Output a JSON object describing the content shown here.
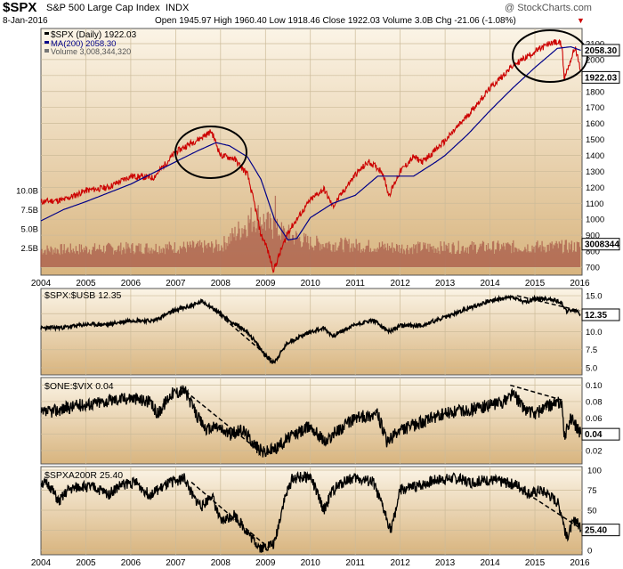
{
  "header": {
    "symbol": "$SPX",
    "name": "S&P 500 Large Cap Index",
    "exchange": "INDX",
    "credit": "@ StockCharts.com",
    "date": "8-Jan-2016",
    "quote": "Open 1945.97  High 1960.40  Low 1918.46  Close 1922.03  Volume 3.0B  Chg -21.06 (-1.08%)",
    "down_marker": "▼"
  },
  "colors": {
    "bg": "#d8b47e",
    "price": "#cc0000",
    "ma": "#000088",
    "volume": "#a85a48",
    "line": "#000000",
    "grid": "#ccbb99"
  },
  "chart_data": [
    {
      "type": "line",
      "panel": "price",
      "legend": [
        "$SPX (Daily) 1922.03",
        "MA(200) 2058.30",
        "Volume 3,008,344,320"
      ],
      "y_ticks": [
        "700",
        "800",
        "900",
        "1000",
        "1100",
        "1200",
        "1300",
        "1400",
        "1500",
        "1600",
        "1700",
        "1800",
        "1900",
        "2000",
        "2100"
      ],
      "ylim": [
        700,
        2150
      ],
      "right_labels": [
        "2058.30",
        "1922.03",
        "3008344"
      ],
      "volume_ticks": [
        "2.5B",
        "5.0B",
        "7.5B",
        "10.0B"
      ],
      "x_ticks": [
        "2004",
        "2005",
        "2006",
        "2007",
        "2008",
        "2009",
        "2010",
        "2011",
        "2012",
        "2013",
        "2014",
        "2015",
        "2016"
      ],
      "series": [
        {
          "name": "$SPX (Daily)",
          "x": [
            2004.0,
            2004.5,
            2005.0,
            2005.5,
            2006.0,
            2006.5,
            2007.0,
            2007.3,
            2007.5,
            2007.8,
            2008.0,
            2008.3,
            2008.6,
            2008.75,
            2008.9,
            2009.0,
            2009.18,
            2009.5,
            2010.0,
            2010.3,
            2010.5,
            2011.0,
            2011.3,
            2011.6,
            2011.75,
            2012.0,
            2012.3,
            2012.5,
            2013.0,
            2013.5,
            2014.0,
            2014.5,
            2015.0,
            2015.4,
            2015.6,
            2015.65,
            2015.8,
            2015.9,
            2016.02
          ],
          "y": [
            1110,
            1120,
            1180,
            1200,
            1270,
            1260,
            1420,
            1470,
            1500,
            1550,
            1400,
            1380,
            1280,
            1100,
            900,
            850,
            680,
            920,
            1120,
            1190,
            1080,
            1280,
            1360,
            1300,
            1150,
            1300,
            1390,
            1360,
            1490,
            1650,
            1820,
            1960,
            2050,
            2110,
            2100,
            1880,
            2000,
            2080,
            1922
          ]
        },
        {
          "name": "MA(200)",
          "x": [
            2004.0,
            2004.5,
            2005.0,
            2006.0,
            2007.0,
            2007.5,
            2007.9,
            2008.2,
            2008.6,
            2008.9,
            2009.2,
            2009.5,
            2009.7,
            2010.0,
            2010.5,
            2011.0,
            2011.5,
            2011.9,
            2012.3,
            2012.8,
            2013.0,
            2013.5,
            2014.0,
            2014.5,
            2015.0,
            2015.5,
            2015.8,
            2016.02
          ],
          "y": [
            990,
            1060,
            1110,
            1220,
            1360,
            1430,
            1480,
            1460,
            1390,
            1250,
            1000,
            870,
            880,
            1010,
            1100,
            1150,
            1270,
            1270,
            1270,
            1360,
            1400,
            1530,
            1680,
            1820,
            1950,
            2070,
            2080,
            2058
          ]
        }
      ],
      "volume": {
        "x": [
          2004.0,
          2008.0,
          2008.8,
          2009.2,
          2010.0,
          2012.0,
          2016.0
        ],
        "y": [
          2.5,
          3.0,
          7.5,
          5.5,
          3.5,
          2.8,
          3.0
        ]
      },
      "volume_peak": {
        "x": 2009.2,
        "y": 9.0
      }
    },
    {
      "type": "line",
      "panel": "ratio",
      "title": "$SPX:$USB 12.35",
      "y_ticks": [
        "5.0",
        "7.5",
        "10.0",
        "12.5",
        "15.0"
      ],
      "ylim": [
        4.5,
        15.5
      ],
      "right_label": "12.35",
      "x": [
        2004.0,
        2004.5,
        2005.0,
        2005.5,
        2006.0,
        2006.5,
        2007.0,
        2007.3,
        2007.6,
        2007.85,
        2008.2,
        2008.6,
        2008.9,
        2009.1,
        2009.2,
        2009.5,
        2010.0,
        2010.3,
        2010.5,
        2011.0,
        2011.4,
        2011.75,
        2012.0,
        2012.5,
        2013.0,
        2013.5,
        2014.0,
        2014.5,
        2014.8,
        2015.0,
        2015.4,
        2015.6,
        2015.7,
        2015.9,
        2016.02
      ],
      "values": [
        10.5,
        10.6,
        11.0,
        11.0,
        11.6,
        11.5,
        13.0,
        13.5,
        14.2,
        13.2,
        11.5,
        10.0,
        7.5,
        6.0,
        5.8,
        8.5,
        10.0,
        10.5,
        9.4,
        11.0,
        11.6,
        10.0,
        10.8,
        10.9,
        12.0,
        13.2,
        14.3,
        14.8,
        14.0,
        14.6,
        14.5,
        14.0,
        12.8,
        13.0,
        12.35
      ],
      "trend_lines": [
        {
          "x": [
            2007.85,
            2009.2
          ],
          "y": [
            13.0,
            5.8
          ]
        },
        {
          "x": [
            2014.6,
            2016.0
          ],
          "y": [
            15.0,
            12.9
          ]
        }
      ]
    },
    {
      "type": "line",
      "panel": "ratio",
      "title": "$ONE:$VIX 0.04",
      "y_ticks": [
        "0.02",
        "0.04",
        "0.06",
        "0.08",
        "0.10"
      ],
      "ylim": [
        0.008,
        0.105
      ],
      "right_label": "0.04",
      "x": [
        2004.0,
        2004.4,
        2004.8,
        2005.2,
        2005.6,
        2006.0,
        2006.4,
        2006.6,
        2006.9,
        2007.2,
        2007.5,
        2007.7,
        2007.9,
        2008.2,
        2008.5,
        2008.8,
        2008.95,
        2009.2,
        2009.5,
        2010.0,
        2010.35,
        2010.5,
        2011.0,
        2011.5,
        2011.7,
        2012.0,
        2012.5,
        2013.0,
        2013.5,
        2014.0,
        2014.3,
        2014.5,
        2014.8,
        2015.0,
        2015.3,
        2015.6,
        2015.65,
        2015.8,
        2016.02
      ],
      "values": [
        0.065,
        0.07,
        0.075,
        0.078,
        0.082,
        0.085,
        0.08,
        0.065,
        0.09,
        0.094,
        0.06,
        0.045,
        0.05,
        0.04,
        0.045,
        0.025,
        0.018,
        0.022,
        0.035,
        0.05,
        0.03,
        0.04,
        0.06,
        0.065,
        0.03,
        0.045,
        0.055,
        0.065,
        0.07,
        0.075,
        0.08,
        0.09,
        0.07,
        0.065,
        0.075,
        0.08,
        0.035,
        0.06,
        0.04
      ],
      "trend_lines": [
        {
          "x": [
            2007.1,
            2008.85
          ],
          "y": [
            0.098,
            0.02
          ]
        },
        {
          "x": [
            2014.45,
            2015.6
          ],
          "y": [
            0.1,
            0.082
          ]
        }
      ]
    },
    {
      "type": "line",
      "panel": "breadth",
      "title": "$SPXA200R 25.40",
      "y_ticks": [
        "0",
        "25",
        "50",
        "75",
        "100"
      ],
      "ylim": [
        -5,
        105
      ],
      "right_label": "25.40",
      "x": [
        2004.0,
        2004.2,
        2004.4,
        2004.6,
        2004.9,
        2005.2,
        2005.5,
        2005.8,
        2006.1,
        2006.4,
        2006.6,
        2006.9,
        2007.2,
        2007.4,
        2007.6,
        2007.8,
        2008.0,
        2008.3,
        2008.5,
        2008.7,
        2008.9,
        2009.0,
        2009.2,
        2009.4,
        2009.6,
        2010.0,
        2010.3,
        2010.5,
        2010.8,
        2011.0,
        2011.4,
        2011.6,
        2011.8,
        2012.0,
        2012.4,
        2012.8,
        2013.2,
        2013.6,
        2014.0,
        2014.3,
        2014.6,
        2014.9,
        2015.1,
        2015.3,
        2015.5,
        2015.6,
        2015.7,
        2015.9,
        2016.02
      ],
      "values": [
        85,
        80,
        60,
        75,
        80,
        78,
        70,
        82,
        85,
        70,
        75,
        85,
        90,
        65,
        55,
        70,
        35,
        45,
        30,
        15,
        3,
        5,
        8,
        60,
        90,
        92,
        50,
        75,
        88,
        90,
        85,
        55,
        25,
        75,
        80,
        88,
        90,
        85,
        88,
        85,
        82,
        70,
        75,
        70,
        60,
        45,
        15,
        40,
        25.4
      ],
      "trend_lines": [
        {
          "x": [
            2007.35,
            2009.05
          ],
          "y": [
            85,
            4
          ]
        },
        {
          "x": [
            2014.3,
            2016.0
          ],
          "y": [
            90,
            28
          ]
        }
      ]
    }
  ]
}
